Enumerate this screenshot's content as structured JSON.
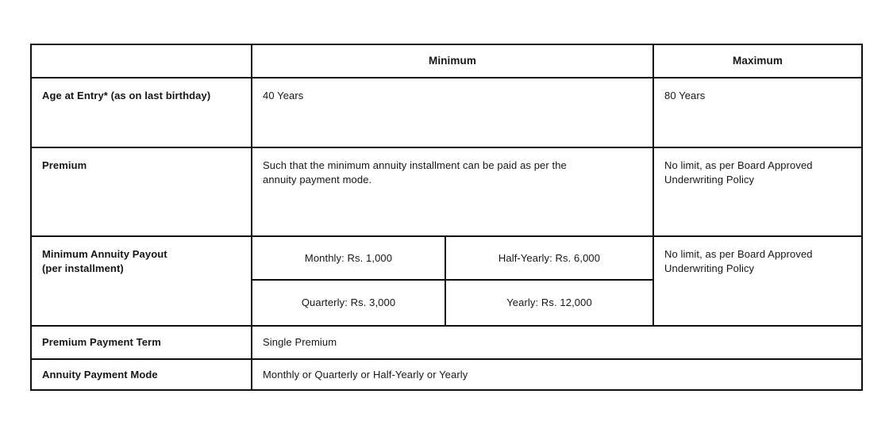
{
  "colors": {
    "border": "#0f0f0f",
    "text": "#161616",
    "background": "#ffffff"
  },
  "table": {
    "header": {
      "minimum": "Minimum",
      "maximum": "Maximum"
    },
    "age": {
      "label": "Age at Entry* (as on last birthday)",
      "minimum": "40 Years",
      "maximum": "80 Years"
    },
    "premium": {
      "label": "Premium",
      "minimum": "Such that the minimum annuity installment can be paid as per the\nannuity payment mode.",
      "maximum": "No limit, as per Board Approved\nUnderwriting Policy"
    },
    "payout": {
      "label": "Minimum Annuity Payout\n(per installment)",
      "monthly": "Monthly: Rs. 1,000",
      "half_yearly": "Half-Yearly: Rs. 6,000",
      "quarterly": "Quarterly: Rs. 3,000",
      "yearly": "Yearly: Rs. 12,000",
      "maximum": "No limit, as per Board Approved\nUnderwriting Policy"
    },
    "premium_payment_term": {
      "label": "Premium Payment Term",
      "value": "Single Premium"
    },
    "annuity_payment_mode": {
      "label": "Annuity Payment Mode",
      "value": "Monthly or Quarterly or Half-Yearly or Yearly"
    }
  }
}
